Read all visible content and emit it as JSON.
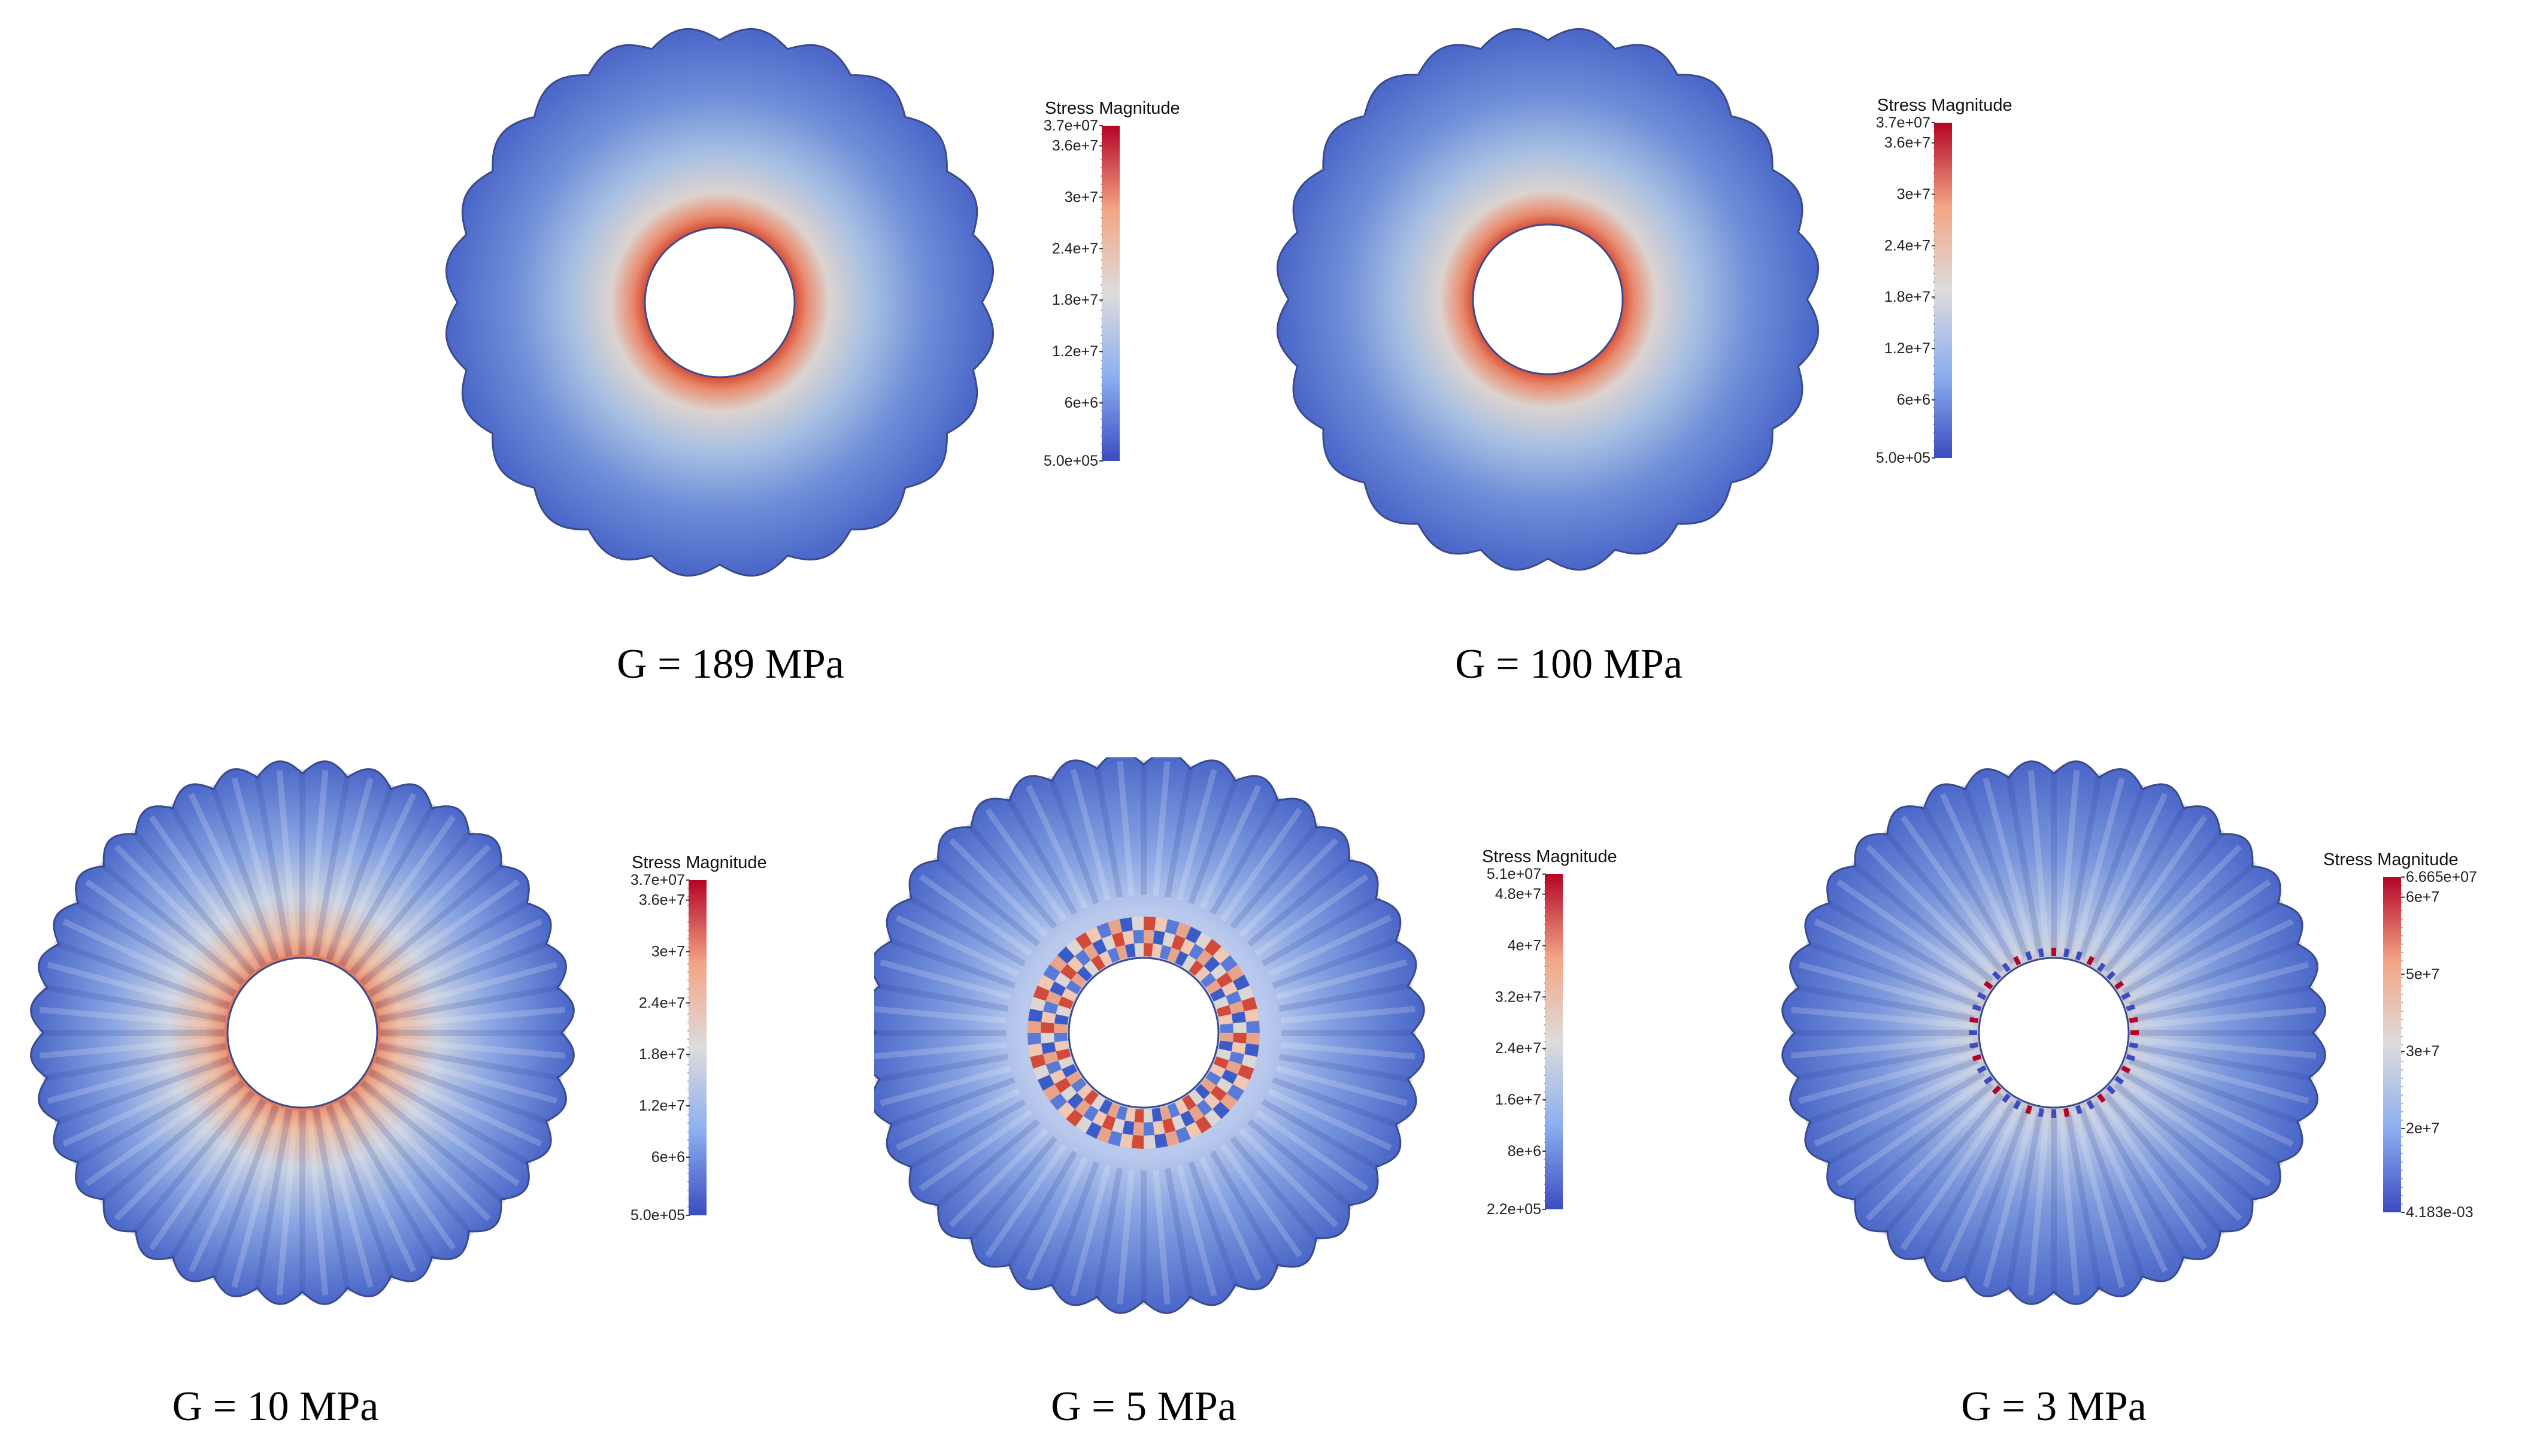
{
  "colors": {
    "low": "#3b4cc0",
    "mid": "#dddcdc",
    "high": "#b40426"
  },
  "panels": [
    {
      "caption": "G = 189 MPa",
      "type": "smooth",
      "colorbar": {
        "title": "Stress Magnitude",
        "max": "3.7e+07",
        "ticks": [
          "3.6e+7",
          "3e+7",
          "2.4e+7",
          "1.8e+7",
          "1.2e+7",
          "6e+6"
        ],
        "min": "5.0e+05"
      }
    },
    {
      "caption": "G = 100 MPa",
      "type": "smooth",
      "colorbar": {
        "title": "Stress Magnitude",
        "max": "3.7e+07",
        "ticks": [
          "3.6e+7",
          "3e+7",
          "2.4e+7",
          "1.8e+7",
          "1.2e+7",
          "6e+6"
        ],
        "min": "5.0e+05"
      }
    },
    {
      "caption": "G = 10 MPa",
      "type": "streaky",
      "colorbar": {
        "title": "Stress Magnitude",
        "max": "3.7e+07",
        "ticks": [
          "3.6e+7",
          "3e+7",
          "2.4e+7",
          "1.8e+7",
          "1.2e+7",
          "6e+6"
        ],
        "min": "5.0e+05"
      }
    },
    {
      "caption": "G = 5 MPa",
      "type": "checker",
      "colorbar": {
        "title": "Stress Magnitude",
        "max": "5.1e+07",
        "ticks": [
          "4.8e+7",
          "4e+7",
          "3.2e+7",
          "2.4e+7",
          "1.6e+7",
          "8e+6"
        ],
        "min": "2.2e+05"
      }
    },
    {
      "caption": "G = 3 MPa",
      "type": "low",
      "colorbar": {
        "title": "Stress Magnitude",
        "max": "6.665e+07",
        "ticks": [
          "6e+7",
          "5e+7",
          "3e+7",
          "2e+7"
        ],
        "min": "4.183e-03"
      }
    }
  ]
}
